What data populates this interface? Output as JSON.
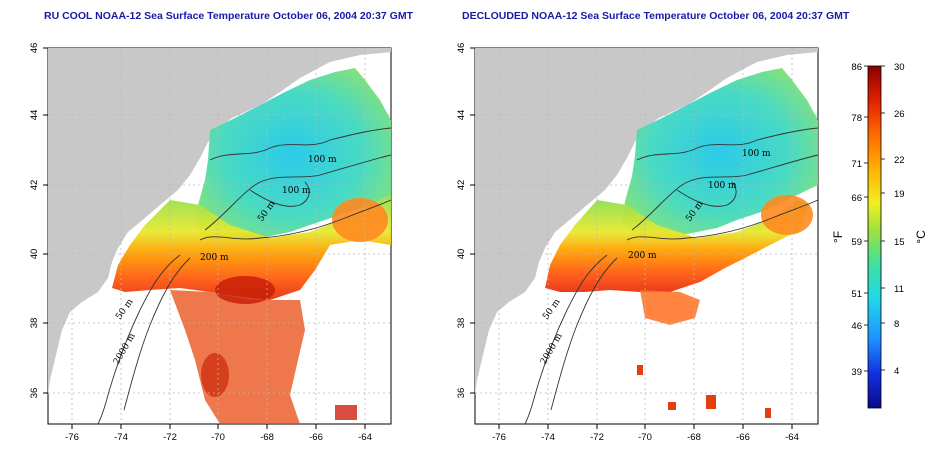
{
  "titles": {
    "left": "RU COOL NOAA-12 Sea Surface Temperature October 06, 2004 20:37 GMT",
    "right": "DECLOUDED NOAA-12 Sea Surface Temperature October 06, 2004 20:37 GMT"
  },
  "axes": {
    "lon_ticks": [
      "-76",
      "-74",
      "-72",
      "-70",
      "-68",
      "-66",
      "-64"
    ],
    "lat_ticks": [
      "46",
      "44",
      "42",
      "40",
      "38",
      "36"
    ]
  },
  "contour_labels": {
    "left": [
      "100 m",
      "100 m",
      "50 m",
      "200 m",
      "50 m",
      "2000 m"
    ],
    "right": [
      "100 m",
      "100 m",
      "50 m",
      "200 m",
      "50 m",
      "2000 m"
    ]
  },
  "colorbar": {
    "fahrenheit_ticks": [
      "86",
      "78",
      "71",
      "66",
      "59",
      "51",
      "46",
      "39"
    ],
    "celsius_ticks": [
      "30",
      "26",
      "22",
      "19",
      "15",
      "11",
      "8",
      "4"
    ],
    "fahrenheit_unit": "°F",
    "celsius_unit": "°C",
    "colors": [
      "#0a0a8a",
      "#1030e0",
      "#1e90ff",
      "#20d8e8",
      "#40e0a0",
      "#a0e040",
      "#f0f020",
      "#ffb000",
      "#ff6a00",
      "#e02000",
      "#8a0000"
    ]
  },
  "colors": {
    "land": "#c8c8c8",
    "ocean_bg": "#ffffff",
    "title": "#1a1aa8",
    "grid": "#b8b8b8"
  }
}
